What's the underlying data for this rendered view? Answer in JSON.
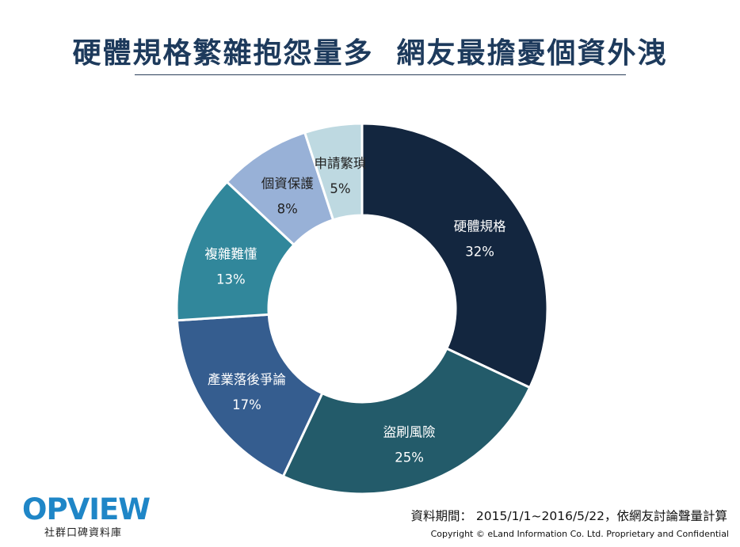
{
  "header": {
    "title": "硬體規格繁雜抱怨量多  網友最擔憂個資外洩"
  },
  "chart_data": {
    "type": "pie",
    "donut": true,
    "slices": [
      {
        "label": "硬體規格",
        "percent_label": "32%",
        "value": 32,
        "color": "#13263f",
        "text_color": "#ffffff"
      },
      {
        "label": "盜刷風險",
        "percent_label": "25%",
        "value": 25,
        "color": "#235b6a",
        "text_color": "#ffffff"
      },
      {
        "label": "產業落後爭論",
        "percent_label": "17%",
        "value": 17,
        "color": "#355d8f",
        "text_color": "#ffffff"
      },
      {
        "label": "複雜難懂",
        "percent_label": "13%",
        "value": 13,
        "color": "#31879b",
        "text_color": "#ffffff"
      },
      {
        "label": "個資保護",
        "percent_label": "8%",
        "value": 8,
        "color": "#98b1d7",
        "text_color": "#222222"
      },
      {
        "label": "申請繁瑣",
        "percent_label": "5%",
        "value": 5,
        "color": "#bed9e1",
        "text_color": "#222222"
      }
    ]
  },
  "footer": {
    "logo_wordmark": "OPVIEW",
    "logo_tagline": "社群口碑資料庫",
    "source": "資料期間： 2015/1/1~2016/5/22，依網友討論聲量計算",
    "copyright": "Copyright © eLand Information Co. Ltd. Proprietary and Confidential"
  }
}
